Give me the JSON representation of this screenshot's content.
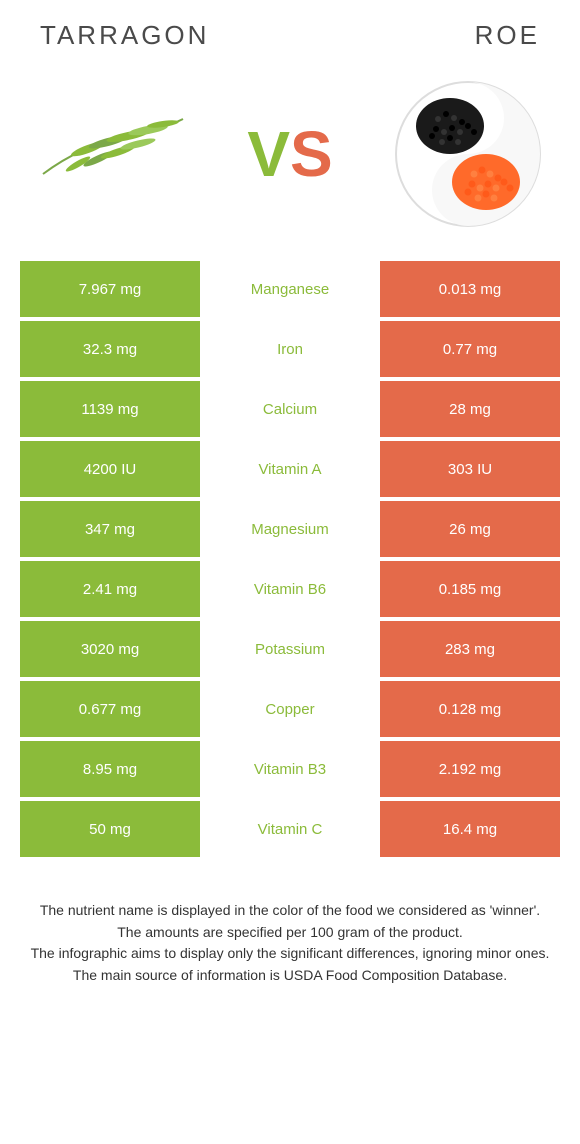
{
  "header": {
    "left_title": "Tarragon",
    "right_title": "Roe",
    "vs_v": "V",
    "vs_s": "S"
  },
  "colors": {
    "left": "#8bbb3a",
    "right": "#e46a4a",
    "text": "#333333",
    "bg": "#ffffff"
  },
  "rows": [
    {
      "left": "7.967 mg",
      "name": "Manganese",
      "right": "0.013 mg",
      "winner": "left"
    },
    {
      "left": "32.3 mg",
      "name": "Iron",
      "right": "0.77 mg",
      "winner": "left"
    },
    {
      "left": "1139 mg",
      "name": "Calcium",
      "right": "28 mg",
      "winner": "left"
    },
    {
      "left": "4200 IU",
      "name": "Vitamin A",
      "right": "303 IU",
      "winner": "left"
    },
    {
      "left": "347 mg",
      "name": "Magnesium",
      "right": "26 mg",
      "winner": "left"
    },
    {
      "left": "2.41 mg",
      "name": "Vitamin B6",
      "right": "0.185 mg",
      "winner": "left"
    },
    {
      "left": "3020 mg",
      "name": "Potassium",
      "right": "283 mg",
      "winner": "left"
    },
    {
      "left": "0.677 mg",
      "name": "Copper",
      "right": "0.128 mg",
      "winner": "left"
    },
    {
      "left": "8.95 mg",
      "name": "Vitamin B3",
      "right": "2.192 mg",
      "winner": "left"
    },
    {
      "left": "50 mg",
      "name": "Vitamin C",
      "right": "16.4 mg",
      "winner": "left"
    }
  ],
  "footer": {
    "line1": "The nutrient name is displayed in the color of the food we considered as 'winner'.",
    "line2": "The amounts are specified per 100 gram of the product.",
    "line3": "The infographic aims to display only the significant differences, ignoring minor ones.",
    "line4": "The main source of information is USDA Food Composition Database."
  }
}
